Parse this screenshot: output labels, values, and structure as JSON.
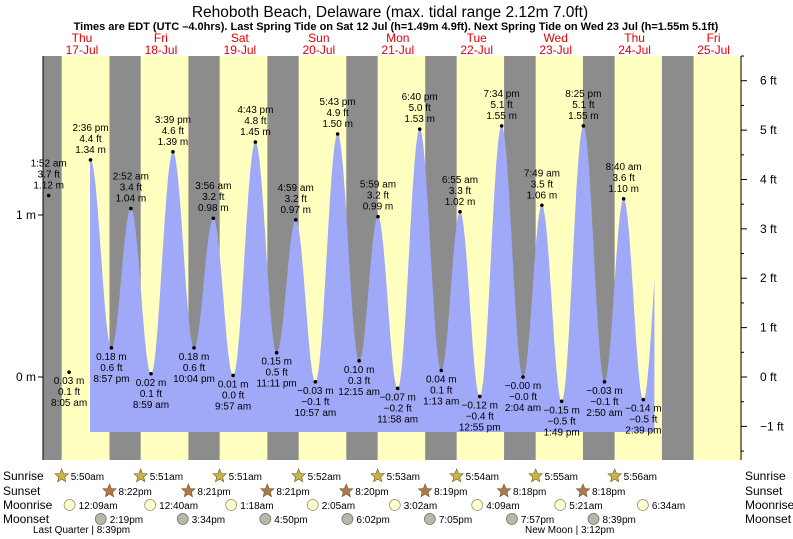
{
  "chart_data": {
    "type": "area",
    "title": "Rehoboth Beach, Delaware (max. tidal range 2.12m 7.0ft)",
    "subtitle": "Times are EDT (UTC –4.0hrs). Last Spring Tide on Sat 12 Jul (h=1.49m 4.9ft). Next Spring Tide on Wed 23 Jul (h=1.55m 5.1ft)",
    "days": [
      {
        "dow": "Thu",
        "date": "17-Jul"
      },
      {
        "dow": "Fri",
        "date": "18-Jul"
      },
      {
        "dow": "Sat",
        "date": "19-Jul"
      },
      {
        "dow": "Sun",
        "date": "20-Jul"
      },
      {
        "dow": "Mon",
        "date": "21-Jul"
      },
      {
        "dow": "Tue",
        "date": "22-Jul"
      },
      {
        "dow": "Wed",
        "date": "23-Jul"
      },
      {
        "dow": "Thu",
        "date": "24-Jul"
      },
      {
        "dow": "Fri",
        "date": "25-Jul"
      }
    ],
    "x_range_days": [
      0,
      9
    ],
    "ylim_m": [
      -0.57,
      2.12
    ],
    "left_axis": {
      "unit": "m",
      "ticks": [
        {
          "v": 0,
          "label": "0 m"
        },
        {
          "v": 1,
          "label": "1 m"
        }
      ]
    },
    "right_axis": {
      "unit": "ft",
      "ticks": [
        {
          "v": -1,
          "label": "−1 ft"
        },
        {
          "v": 0,
          "label": "0 ft"
        },
        {
          "v": 1,
          "label": "1 ft"
        },
        {
          "v": 2,
          "label": "2 ft"
        },
        {
          "v": 3,
          "label": "3 ft"
        },
        {
          "v": 4,
          "label": "4 ft"
        },
        {
          "v": 5,
          "label": "5 ft"
        },
        {
          "v": 6,
          "label": "6 ft"
        }
      ]
    },
    "daylight": [
      {
        "rise": 0.2431,
        "set": 0.8486
      },
      {
        "rise": 1.2438,
        "set": 1.8479
      },
      {
        "rise": 2.2438,
        "set": 2.8479
      },
      {
        "rise": 3.2444,
        "set": 3.8479
      },
      {
        "rise": 4.2451,
        "set": 4.8472
      },
      {
        "rise": 5.2458,
        "set": 5.8465
      },
      {
        "rise": 6.2465,
        "set": 6.8458
      },
      {
        "rise": 7.2465,
        "set": 7.8458
      },
      {
        "rise": 8.2472,
        "set": 8.8472
      }
    ],
    "tides": [
      {
        "t": 0.078,
        "m": 1.12,
        "type": "high",
        "time": "1:52 am",
        "ft": "3.7 ft",
        "mlabel": "1.12 m"
      },
      {
        "t": 0.3368,
        "m": 0.03,
        "type": "low",
        "time": "8:05 am",
        "ft": "0.1 ft",
        "mlabel": "0.03 m"
      },
      {
        "t": 0.6083,
        "m": 1.34,
        "type": "high",
        "time": "2:36 pm",
        "ft": "4.4 ft",
        "mlabel": "1.34 m"
      },
      {
        "t": 0.8729,
        "m": 0.18,
        "type": "low",
        "time": "8:57 pm",
        "ft": "0.6 ft",
        "mlabel": "0.18 m"
      },
      {
        "t": 1.1194,
        "m": 1.04,
        "type": "high",
        "time": "2:52 am",
        "ft": "3.4 ft",
        "mlabel": "1.04 m"
      },
      {
        "t": 1.3743,
        "m": 0.02,
        "type": "low",
        "time": "8:59 am",
        "ft": "0.1 ft",
        "mlabel": "0.02 m"
      },
      {
        "t": 1.6521,
        "m": 1.39,
        "type": "high",
        "time": "3:39 pm",
        "ft": "4.6 ft",
        "mlabel": "1.39 m"
      },
      {
        "t": 1.9194,
        "m": 0.18,
        "type": "low",
        "time": "10:04 pm",
        "ft": "0.6 ft",
        "mlabel": "0.18 m"
      },
      {
        "t": 2.1639,
        "m": 0.98,
        "type": "high",
        "time": "3:56 am",
        "ft": "3.2 ft",
        "mlabel": "0.98 m"
      },
      {
        "t": 2.4146,
        "m": 0.01,
        "type": "low",
        "time": "9:57 am",
        "ft": "0.0 ft",
        "mlabel": "0.01 m"
      },
      {
        "t": 2.6965,
        "m": 1.45,
        "type": "high",
        "time": "4:43 pm",
        "ft": "4.8 ft",
        "mlabel": "1.45 m"
      },
      {
        "t": 2.966,
        "m": 0.15,
        "type": "low",
        "time": "11:11 pm",
        "ft": "0.5 ft",
        "mlabel": "0.15 m"
      },
      {
        "t": 3.2076,
        "m": 0.97,
        "type": "high",
        "time": "4:59 am",
        "ft": "3.2 ft",
        "mlabel": "0.97 m"
      },
      {
        "t": 3.4563,
        "m": -0.03,
        "type": "low",
        "time": "10:57 am",
        "ft": "−0.1 ft",
        "mlabel": "−0.03 m"
      },
      {
        "t": 3.7382,
        "m": 1.5,
        "type": "high",
        "time": "5:43 pm",
        "ft": "4.9 ft",
        "mlabel": "1.50 m"
      },
      {
        "t": 4.0104,
        "m": 0.1,
        "type": "low",
        "time": "12:15 am",
        "ft": "0.3 ft",
        "mlabel": "0.10 m"
      },
      {
        "t": 4.2493,
        "m": 0.99,
        "type": "high",
        "time": "5:59 am",
        "ft": "3.2 ft",
        "mlabel": "0.99 m"
      },
      {
        "t": 4.4986,
        "m": -0.07,
        "type": "low",
        "time": "11:58 am",
        "ft": "−0.2 ft",
        "mlabel": "−0.07 m"
      },
      {
        "t": 4.7778,
        "m": 1.53,
        "type": "high",
        "time": "6:40 pm",
        "ft": "5.0 ft",
        "mlabel": "1.53 m"
      },
      {
        "t": 5.0507,
        "m": 0.04,
        "type": "low",
        "time": "1:13 am",
        "ft": "0.1 ft",
        "mlabel": "0.04 m"
      },
      {
        "t": 5.2882,
        "m": 1.02,
        "type": "high",
        "time": "6:55 am",
        "ft": "3.3 ft",
        "mlabel": "1.02 m"
      },
      {
        "t": 5.5382,
        "m": -0.12,
        "type": "low",
        "time": "12:55 pm",
        "ft": "−0.4 ft",
        "mlabel": "−0.12 m"
      },
      {
        "t": 5.8153,
        "m": 1.55,
        "type": "high",
        "time": "7:34 pm",
        "ft": "5.1 ft",
        "mlabel": "1.55 m"
      },
      {
        "t": 6.0861,
        "m": -0.0,
        "type": "low",
        "time": "2:04 am",
        "ft": "−0.0 ft",
        "mlabel": "−0.00 m"
      },
      {
        "t": 6.3257,
        "m": 1.06,
        "type": "high",
        "time": "7:49 am",
        "ft": "3.5 ft",
        "mlabel": "1.06 m"
      },
      {
        "t": 6.5757,
        "m": -0.15,
        "type": "low",
        "time": "1:49 pm",
        "ft": "−0.5 ft",
        "mlabel": "−0.15 m"
      },
      {
        "t": 6.8507,
        "m": 1.55,
        "type": "high",
        "time": "8:25 pm",
        "ft": "5.1 ft",
        "mlabel": "1.55 m"
      },
      {
        "t": 7.1181,
        "m": -0.03,
        "type": "low",
        "time": "2:50 am",
        "ft": "−0.1 ft",
        "mlabel": "−0.03 m"
      },
      {
        "t": 7.3611,
        "m": 1.1,
        "type": "high",
        "time": "8:40 am",
        "ft": "3.6 ft",
        "mlabel": "1.10 m"
      },
      {
        "t": 7.6104,
        "m": -0.14,
        "type": "low",
        "time": "2:39 pm",
        "ft": "−0.5 ft",
        "mlabel": "−0.14 m"
      }
    ],
    "rows": {
      "sunrise": {
        "label": "Sunrise",
        "items": [
          {
            "t": 0.2431,
            "text": "5:50am"
          },
          {
            "t": 1.2438,
            "text": "5:51am"
          },
          {
            "t": 2.2438,
            "text": "5:51am"
          },
          {
            "t": 3.2444,
            "text": "5:52am"
          },
          {
            "t": 4.2451,
            "text": "5:53am"
          },
          {
            "t": 5.2458,
            "text": "5:54am"
          },
          {
            "t": 6.2465,
            "text": "5:55am"
          },
          {
            "t": 7.2472,
            "text": "5:56am"
          }
        ]
      },
      "sunset": {
        "label": "Sunset",
        "items": [
          {
            "t": 0.8486,
            "text": "8:22pm"
          },
          {
            "t": 1.8479,
            "text": "8:21pm"
          },
          {
            "t": 2.8479,
            "text": "8:21pm"
          },
          {
            "t": 3.8472,
            "text": "8:20pm"
          },
          {
            "t": 4.8465,
            "text": "8:19pm"
          },
          {
            "t": 5.8458,
            "text": "8:18pm"
          },
          {
            "t": 6.8458,
            "text": "8:18pm"
          }
        ]
      },
      "moonrise": {
        "label": "Moonrise",
        "items": [
          {
            "t": -0.4924,
            "text": "12:09am"
          },
          {
            "t": 0.5278,
            "text": "12:40am"
          },
          {
            "t": 1.5542,
            "text": "1:18am"
          },
          {
            "t": 2.5868,
            "text": "2:05am"
          },
          {
            "t": 3.6264,
            "text": "3:02am"
          },
          {
            "t": 4.6701,
            "text": "4:09am"
          },
          {
            "t": 5.7222,
            "text": "5:21am"
          },
          {
            "t": 6.7681,
            "text": "6:34am"
          }
        ]
      },
      "moonset": {
        "label": "Moonset",
        "items": [
          {
            "t": -0.0979,
            "text": "2:19pm"
          },
          {
            "t": 0.9403,
            "text": "3:34pm"
          },
          {
            "t": 1.9861,
            "text": "4:50pm"
          },
          {
            "t": 3.0264,
            "text": "6:02pm"
          },
          {
            "t": 4.0701,
            "text": "7:05pm"
          },
          {
            "t": 5.1097,
            "text": "7:57pm"
          },
          {
            "t": 6.1431,
            "text": "8:39pm"
          }
        ]
      }
    },
    "moon_phases": [
      {
        "text": "Last Quarter | 8:39pm"
      },
      {
        "text": "New Moon | 3:12pm"
      }
    ],
    "colors": {
      "night": "#8c8c8c",
      "day": "#ffffc0",
      "tide_fill": "#a0a8f8",
      "day_label": "#e00000",
      "sunrise_star": "#c8b448",
      "sunset_star": "#b0784c",
      "moonrise_disc": "#ffffd0",
      "moonset_disc": "#b8b8a8"
    }
  }
}
